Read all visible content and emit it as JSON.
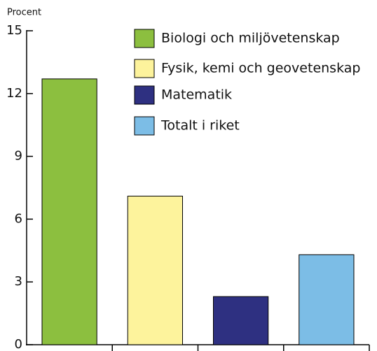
{
  "chart_data": {
    "type": "bar",
    "y_label": "Procent",
    "categories": [
      null
    ],
    "series": [
      {
        "name": "Biologi och miljövetenskap",
        "color": "#8cbf3f",
        "values": [
          12.7
        ]
      },
      {
        "name": "Fysik, kemi och geovetenskap",
        "color": "#fdf39c",
        "values": [
          7.1
        ]
      },
      {
        "name": "Matematik",
        "color": "#2e3081",
        "values": [
          2.3
        ]
      },
      {
        "name": "Totalt i riket",
        "color": "#7cbde6",
        "values": [
          4.3
        ]
      }
    ],
    "ylim": [
      0,
      15
    ],
    "yticks": [
      0,
      3,
      6,
      9,
      12,
      15
    ],
    "legend": "upper right"
  }
}
